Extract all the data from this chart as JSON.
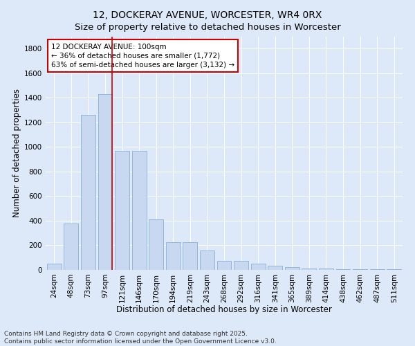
{
  "title": "12, DOCKERAY AVENUE, WORCESTER, WR4 0RX",
  "subtitle": "Size of property relative to detached houses in Worcester",
  "xlabel": "Distribution of detached houses by size in Worcester",
  "ylabel": "Number of detached properties",
  "categories": [
    "24sqm",
    "48sqm",
    "73sqm",
    "97sqm",
    "121sqm",
    "146sqm",
    "170sqm",
    "194sqm",
    "219sqm",
    "243sqm",
    "268sqm",
    "292sqm",
    "316sqm",
    "341sqm",
    "365sqm",
    "389sqm",
    "414sqm",
    "438sqm",
    "462sqm",
    "487sqm",
    "511sqm"
  ],
  "values": [
    50,
    375,
    1260,
    1430,
    970,
    970,
    410,
    225,
    225,
    155,
    75,
    75,
    50,
    35,
    25,
    10,
    10,
    5,
    5,
    3,
    3
  ],
  "bar_color": "#c8d8f0",
  "bar_edge_color": "#8ab0d8",
  "vline_color": "#cc0000",
  "vline_index": 3,
  "annotation_line1": "12 DOCKERAY AVENUE: 100sqm",
  "annotation_line2": "← 36% of detached houses are smaller (1,772)",
  "annotation_line3": "63% of semi-detached houses are larger (3,132) →",
  "annotation_box_color": "#ffffff",
  "annotation_box_edge": "#cc0000",
  "annotation_fontsize": 7.5,
  "ylim": [
    0,
    1900
  ],
  "yticks": [
    0,
    200,
    400,
    600,
    800,
    1000,
    1200,
    1400,
    1600,
    1800
  ],
  "background_color": "#dde8f8",
  "plot_bg_color": "#dde8f8",
  "footer": "Contains HM Land Registry data © Crown copyright and database right 2025.\nContains public sector information licensed under the Open Government Licence v3.0.",
  "title_fontsize": 10,
  "xlabel_fontsize": 8.5,
  "ylabel_fontsize": 8.5,
  "footer_fontsize": 6.5,
  "tick_fontsize": 7.5
}
